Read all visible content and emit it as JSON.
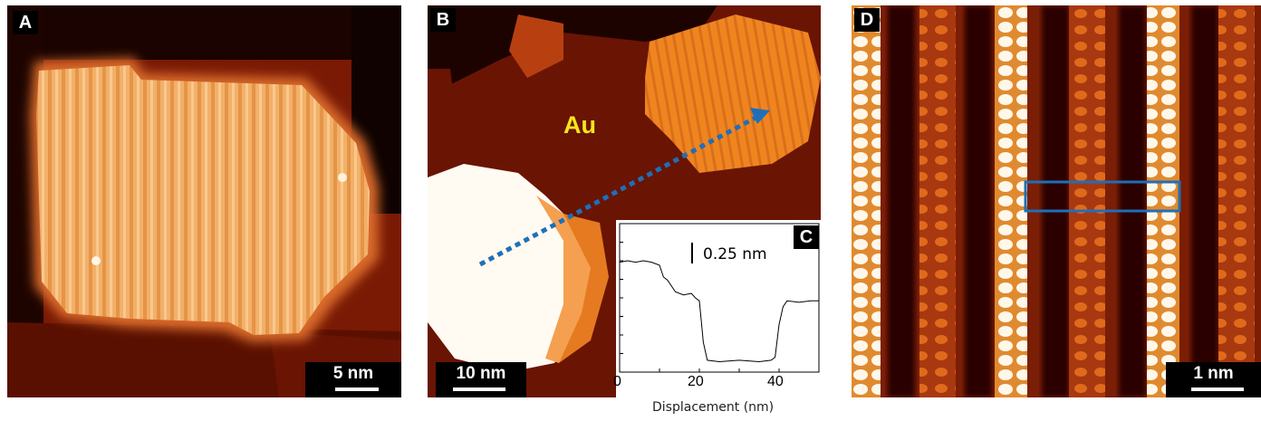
{
  "panels": {
    "a": {
      "label": "A",
      "scale_bar": "5 nm"
    },
    "b": {
      "label": "B",
      "scale_bar": "10 nm",
      "region_label": "Au"
    },
    "c": {
      "label": "C",
      "height_scale": "0.25 nm",
      "xlabel": "Displacement (nm)",
      "xticks": [
        "0",
        "20",
        "40"
      ]
    },
    "d": {
      "label": "D",
      "scale_bar": "1 nm"
    }
  },
  "colors": {
    "stm_dark": "#2a0500",
    "stm_mid": "#7a1d05",
    "stm_bright": "#f0b06a",
    "au_label": "#f6e61a",
    "arrow": "#1f6fb8",
    "roi_box": "#1f6fb8"
  },
  "chart_data": {
    "type": "line",
    "xlabel": "Displacement (nm)",
    "ylabel": "",
    "xlim": [
      0,
      50
    ],
    "x": [
      0,
      2,
      4,
      6,
      8,
      10,
      11,
      12,
      13,
      14,
      16,
      18,
      19,
      20,
      21,
      22,
      25,
      30,
      35,
      38,
      39,
      40,
      41,
      42,
      45,
      48,
      50
    ],
    "y": [
      0.74,
      0.75,
      0.74,
      0.75,
      0.74,
      0.72,
      0.64,
      0.62,
      0.58,
      0.54,
      0.52,
      0.53,
      0.5,
      0.48,
      0.2,
      0.08,
      0.07,
      0.08,
      0.07,
      0.08,
      0.1,
      0.32,
      0.44,
      0.48,
      0.47,
      0.48,
      0.48
    ]
  }
}
